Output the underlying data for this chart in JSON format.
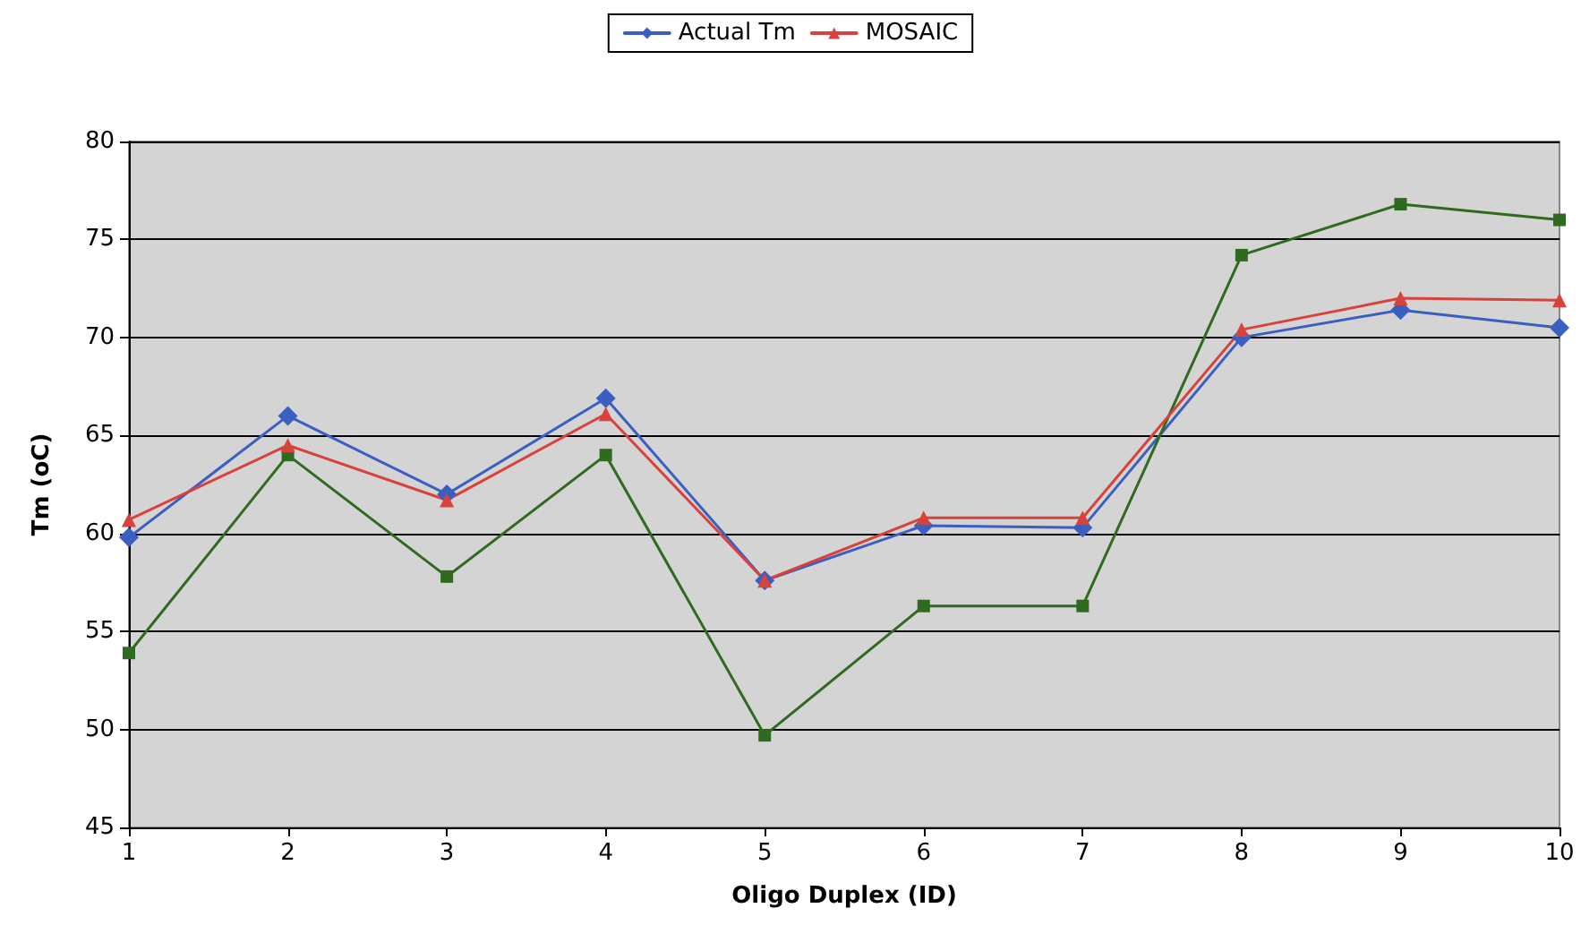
{
  "chart_data": {
    "type": "line",
    "xlabel": "Oligo Duplex (ID)",
    "ylabel": "Tm (oC)",
    "categories": [
      "1",
      "2",
      "3",
      "4",
      "5",
      "6",
      "7",
      "8",
      "9",
      "10"
    ],
    "series": [
      {
        "name": "Actual Tm",
        "color": "#3b5fc0",
        "marker": "diamond",
        "values": [
          59.8,
          66,
          62,
          66.9,
          57.6,
          60.4,
          60.3,
          70,
          71.4,
          70.5
        ]
      },
      {
        "color": "#2e6b1e",
        "marker": "square",
        "values": [
          53.9,
          64,
          57.8,
          64,
          49.7,
          56.3,
          56.3,
          74.2,
          76.8,
          76
        ]
      },
      {
        "name": "MOSAIC",
        "color": "#d9423a",
        "marker": "triangle",
        "values": [
          60.7,
          64.5,
          61.7,
          66.1,
          57.6,
          60.8,
          60.8,
          70.4,
          72,
          71.9
        ]
      }
    ],
    "ylim": [
      45,
      80
    ],
    "yticks": [
      45,
      50,
      55,
      60,
      65,
      70,
      75,
      80
    ],
    "grid": "y",
    "legend": "top",
    "line_style": "solid"
  }
}
